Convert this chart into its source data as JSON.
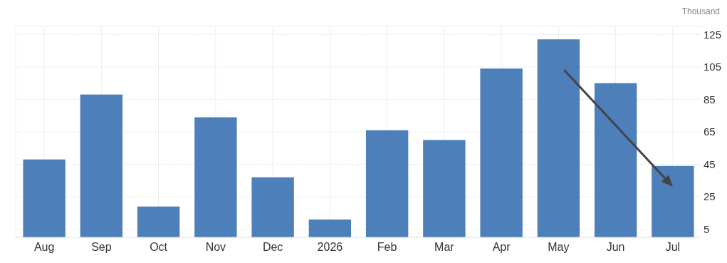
{
  "chart_data": {
    "type": "bar",
    "ylabel": "Thousand",
    "categories": [
      "Aug",
      "Sep",
      "Oct",
      "Nov",
      "Dec",
      "2026",
      "Feb",
      "Mar",
      "Apr",
      "May",
      "Jun",
      "Jul"
    ],
    "values": [
      48,
      88,
      19,
      74,
      37,
      11,
      66,
      60,
      104,
      122,
      95,
      44
    ],
    "color": "#4d7fbb",
    "ylim": [
      0,
      130
    ],
    "yticks": [
      5,
      25,
      45,
      65,
      85,
      105,
      125
    ],
    "grid": true
  }
}
